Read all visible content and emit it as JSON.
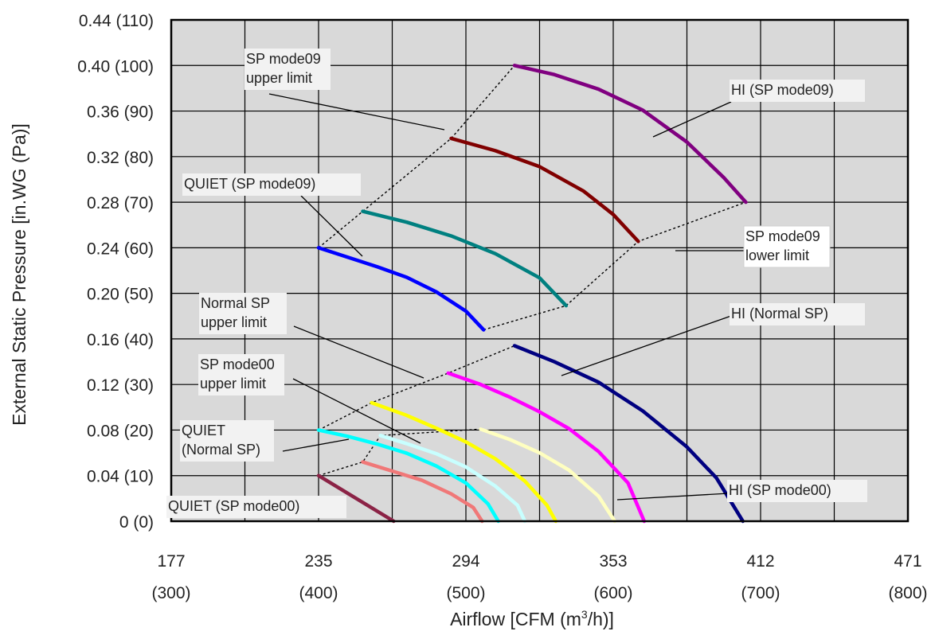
{
  "chart_data": {
    "type": "line",
    "xlabel": "Airflow [CFM (m³/h)]",
    "xlabel_prefix": "Airflow [CFM (m",
    "xlabel_sup": "3",
    "xlabel_suffix": "/h)]",
    "ylabel": "External Static Pressure [in.WG (Pa)]",
    "xlim": [
      300,
      800
    ],
    "ylim": [
      0,
      110
    ],
    "grid": true,
    "x_ticks": [
      {
        "value": 300,
        "cfm": "177",
        "m3h": "(300)"
      },
      {
        "value": 400,
        "cfm": "235",
        "m3h": "(400)"
      },
      {
        "value": 500,
        "cfm": "294",
        "m3h": "(500)"
      },
      {
        "value": 600,
        "cfm": "353",
        "m3h": "(600)"
      },
      {
        "value": 700,
        "cfm": "412",
        "m3h": "(700)"
      },
      {
        "value": 800,
        "cfm": "471",
        "m3h": "(800)"
      }
    ],
    "y_ticks": [
      {
        "value": 0,
        "label": "0 (0)"
      },
      {
        "value": 10,
        "label": "0.04 (10)"
      },
      {
        "value": 20,
        "label": "0.08 (20)"
      },
      {
        "value": 30,
        "label": "0.12 (30)"
      },
      {
        "value": 40,
        "label": "0.16 (40)"
      },
      {
        "value": 50,
        "label": "0.20 (50)"
      },
      {
        "value": 60,
        "label": "0.24 (60)"
      },
      {
        "value": 70,
        "label": "0.28 (70)"
      },
      {
        "value": 80,
        "label": "0.32 (80)"
      },
      {
        "value": 90,
        "label": "0.36 (90)"
      },
      {
        "value": 100,
        "label": "0.40 (100)"
      },
      {
        "value": 110,
        "label": "0.44 (110)"
      }
    ],
    "series": [
      {
        "color": "#8b2346",
        "points": [
          [
            400,
            10
          ],
          [
            451,
            0
          ]
        ]
      },
      {
        "color": "#f07878",
        "points": [
          [
            430,
            13
          ],
          [
            450,
            11
          ],
          [
            470,
            9
          ],
          [
            490,
            6
          ],
          [
            505,
            3
          ],
          [
            511,
            0
          ]
        ]
      },
      {
        "color": "#00ffff",
        "points": [
          [
            400,
            20
          ],
          [
            420,
            18.6
          ],
          [
            440,
            16.9
          ],
          [
            460,
            14.9
          ],
          [
            480,
            12.1
          ],
          [
            500,
            8.4
          ],
          [
            515,
            3.8
          ],
          [
            522,
            0
          ]
        ]
      },
      {
        "color": "#c8ffff",
        "points": [
          [
            442,
            18.8
          ],
          [
            460,
            17
          ],
          [
            480,
            14.8
          ],
          [
            500,
            11.9
          ],
          [
            520,
            7.7
          ],
          [
            535,
            3.5
          ],
          [
            540,
            0
          ]
        ]
      },
      {
        "color": "#ffff00",
        "points": [
          [
            436,
            26
          ],
          [
            460,
            23.2
          ],
          [
            480,
            20.4
          ],
          [
            500,
            17.4
          ],
          [
            520,
            13.7
          ],
          [
            540,
            8.8
          ],
          [
            555,
            3.5
          ],
          [
            561,
            0
          ]
        ]
      },
      {
        "color": "#ffffc0",
        "points": [
          [
            510,
            20.2
          ],
          [
            530,
            17.9
          ],
          [
            550,
            15
          ],
          [
            570,
            11.2
          ],
          [
            590,
            5.5
          ],
          [
            601,
            0
          ]
        ]
      },
      {
        "color": "#ff00ff",
        "points": [
          [
            488,
            32.5
          ],
          [
            510,
            30
          ],
          [
            530,
            27.2
          ],
          [
            550,
            24
          ],
          [
            570,
            20.3
          ],
          [
            590,
            15.3
          ],
          [
            610,
            8.4
          ],
          [
            621,
            0
          ]
        ]
      },
      {
        "color": "#000080",
        "points": [
          [
            533,
            38.5
          ],
          [
            560,
            35
          ],
          [
            590,
            30.5
          ],
          [
            620,
            24.2
          ],
          [
            650,
            16.3
          ],
          [
            670,
            9.5
          ],
          [
            688,
            0
          ]
        ]
      },
      {
        "color": "#0000ff",
        "points": [
          [
            400,
            60
          ],
          [
            420,
            57.9
          ],
          [
            440,
            55.8
          ],
          [
            460,
            53.5
          ],
          [
            480,
            50.3
          ],
          [
            500,
            46.1
          ],
          [
            512,
            42
          ]
        ]
      },
      {
        "color": "#008080",
        "points": [
          [
            430,
            68
          ],
          [
            460,
            65.6
          ],
          [
            490,
            62.6
          ],
          [
            520,
            58.7
          ],
          [
            550,
            53.4
          ],
          [
            568,
            47.3
          ]
        ]
      },
      {
        "color": "#800000",
        "points": [
          [
            490,
            84
          ],
          [
            520,
            81.3
          ],
          [
            550,
            77.8
          ],
          [
            580,
            72.4
          ],
          [
            600,
            67.3
          ],
          [
            617,
            61.4
          ]
        ]
      },
      {
        "color": "#800080",
        "points": [
          [
            533,
            100
          ],
          [
            560,
            98
          ],
          [
            590,
            94.8
          ],
          [
            620,
            90.2
          ],
          [
            650,
            83.2
          ],
          [
            675,
            75.4
          ],
          [
            690,
            70
          ]
        ]
      }
    ],
    "limit_lines": [
      {
        "name": "SP mode09 upper limit",
        "points": [
          [
            400,
            60
          ],
          [
            430,
            68
          ],
          [
            490,
            84
          ],
          [
            533,
            100
          ]
        ]
      },
      {
        "name": "SP mode09 lower limit",
        "points": [
          [
            512,
            42
          ],
          [
            568,
            47.3
          ],
          [
            617,
            61.4
          ],
          [
            690,
            70
          ]
        ]
      },
      {
        "name": "Normal SP upper limit",
        "points": [
          [
            400,
            20
          ],
          [
            436,
            26
          ],
          [
            488,
            32.5
          ],
          [
            533,
            38.5
          ]
        ]
      },
      {
        "name": "SP mode00 upper limit",
        "points": [
          [
            400,
            10
          ],
          [
            430,
            13
          ],
          [
            442,
            18.8
          ],
          [
            510,
            20.2
          ]
        ]
      }
    ],
    "annotations": [
      {
        "id": "sp09-upper",
        "lines": [
          "SP mode09",
          "upper limit"
        ],
        "at": [
          497,
          86.5
        ],
        "boxed": false
      },
      {
        "id": "hi-sp09",
        "lines": [
          "HI (SP mode09)"
        ],
        "at": [
          633,
          87
        ],
        "boxed": false
      },
      {
        "id": "quiet-sp09",
        "lines": [
          "QUIET (SP mode09)"
        ],
        "at": [
          447,
          58
        ],
        "boxed": false
      },
      {
        "id": "sp09-lower",
        "lines": [
          "SP mode09",
          "lower limit"
        ],
        "at": [
          656,
          59
        ],
        "boxed": true
      },
      {
        "id": "normal-upper",
        "lines": [
          "Normal SP",
          "upper limit"
        ],
        "at": [
          487,
          31
        ],
        "boxed": false
      },
      {
        "id": "hi-normal",
        "lines": [
          "HI (Normal SP)"
        ],
        "at": [
          549,
          32
        ],
        "boxed": false
      },
      {
        "id": "sp00-upper",
        "lines": [
          "SP mode00",
          "upper limit"
        ],
        "at": [
          473,
          18.7
        ],
        "boxed": false
      },
      {
        "id": "quiet-normal",
        "lines": [
          "QUIET",
          "(Normal SP)"
        ],
        "at": [
          413,
          17
        ],
        "boxed": false
      },
      {
        "id": "hi-sp00",
        "lines": [
          "HI (SP mode00)"
        ],
        "at": [
          606,
          4
        ],
        "boxed": false
      },
      {
        "id": "quiet-sp00",
        "lines": [
          "QUIET (SP mode00)"
        ],
        "at": [
          403,
          7.5
        ],
        "boxed": false
      }
    ]
  }
}
